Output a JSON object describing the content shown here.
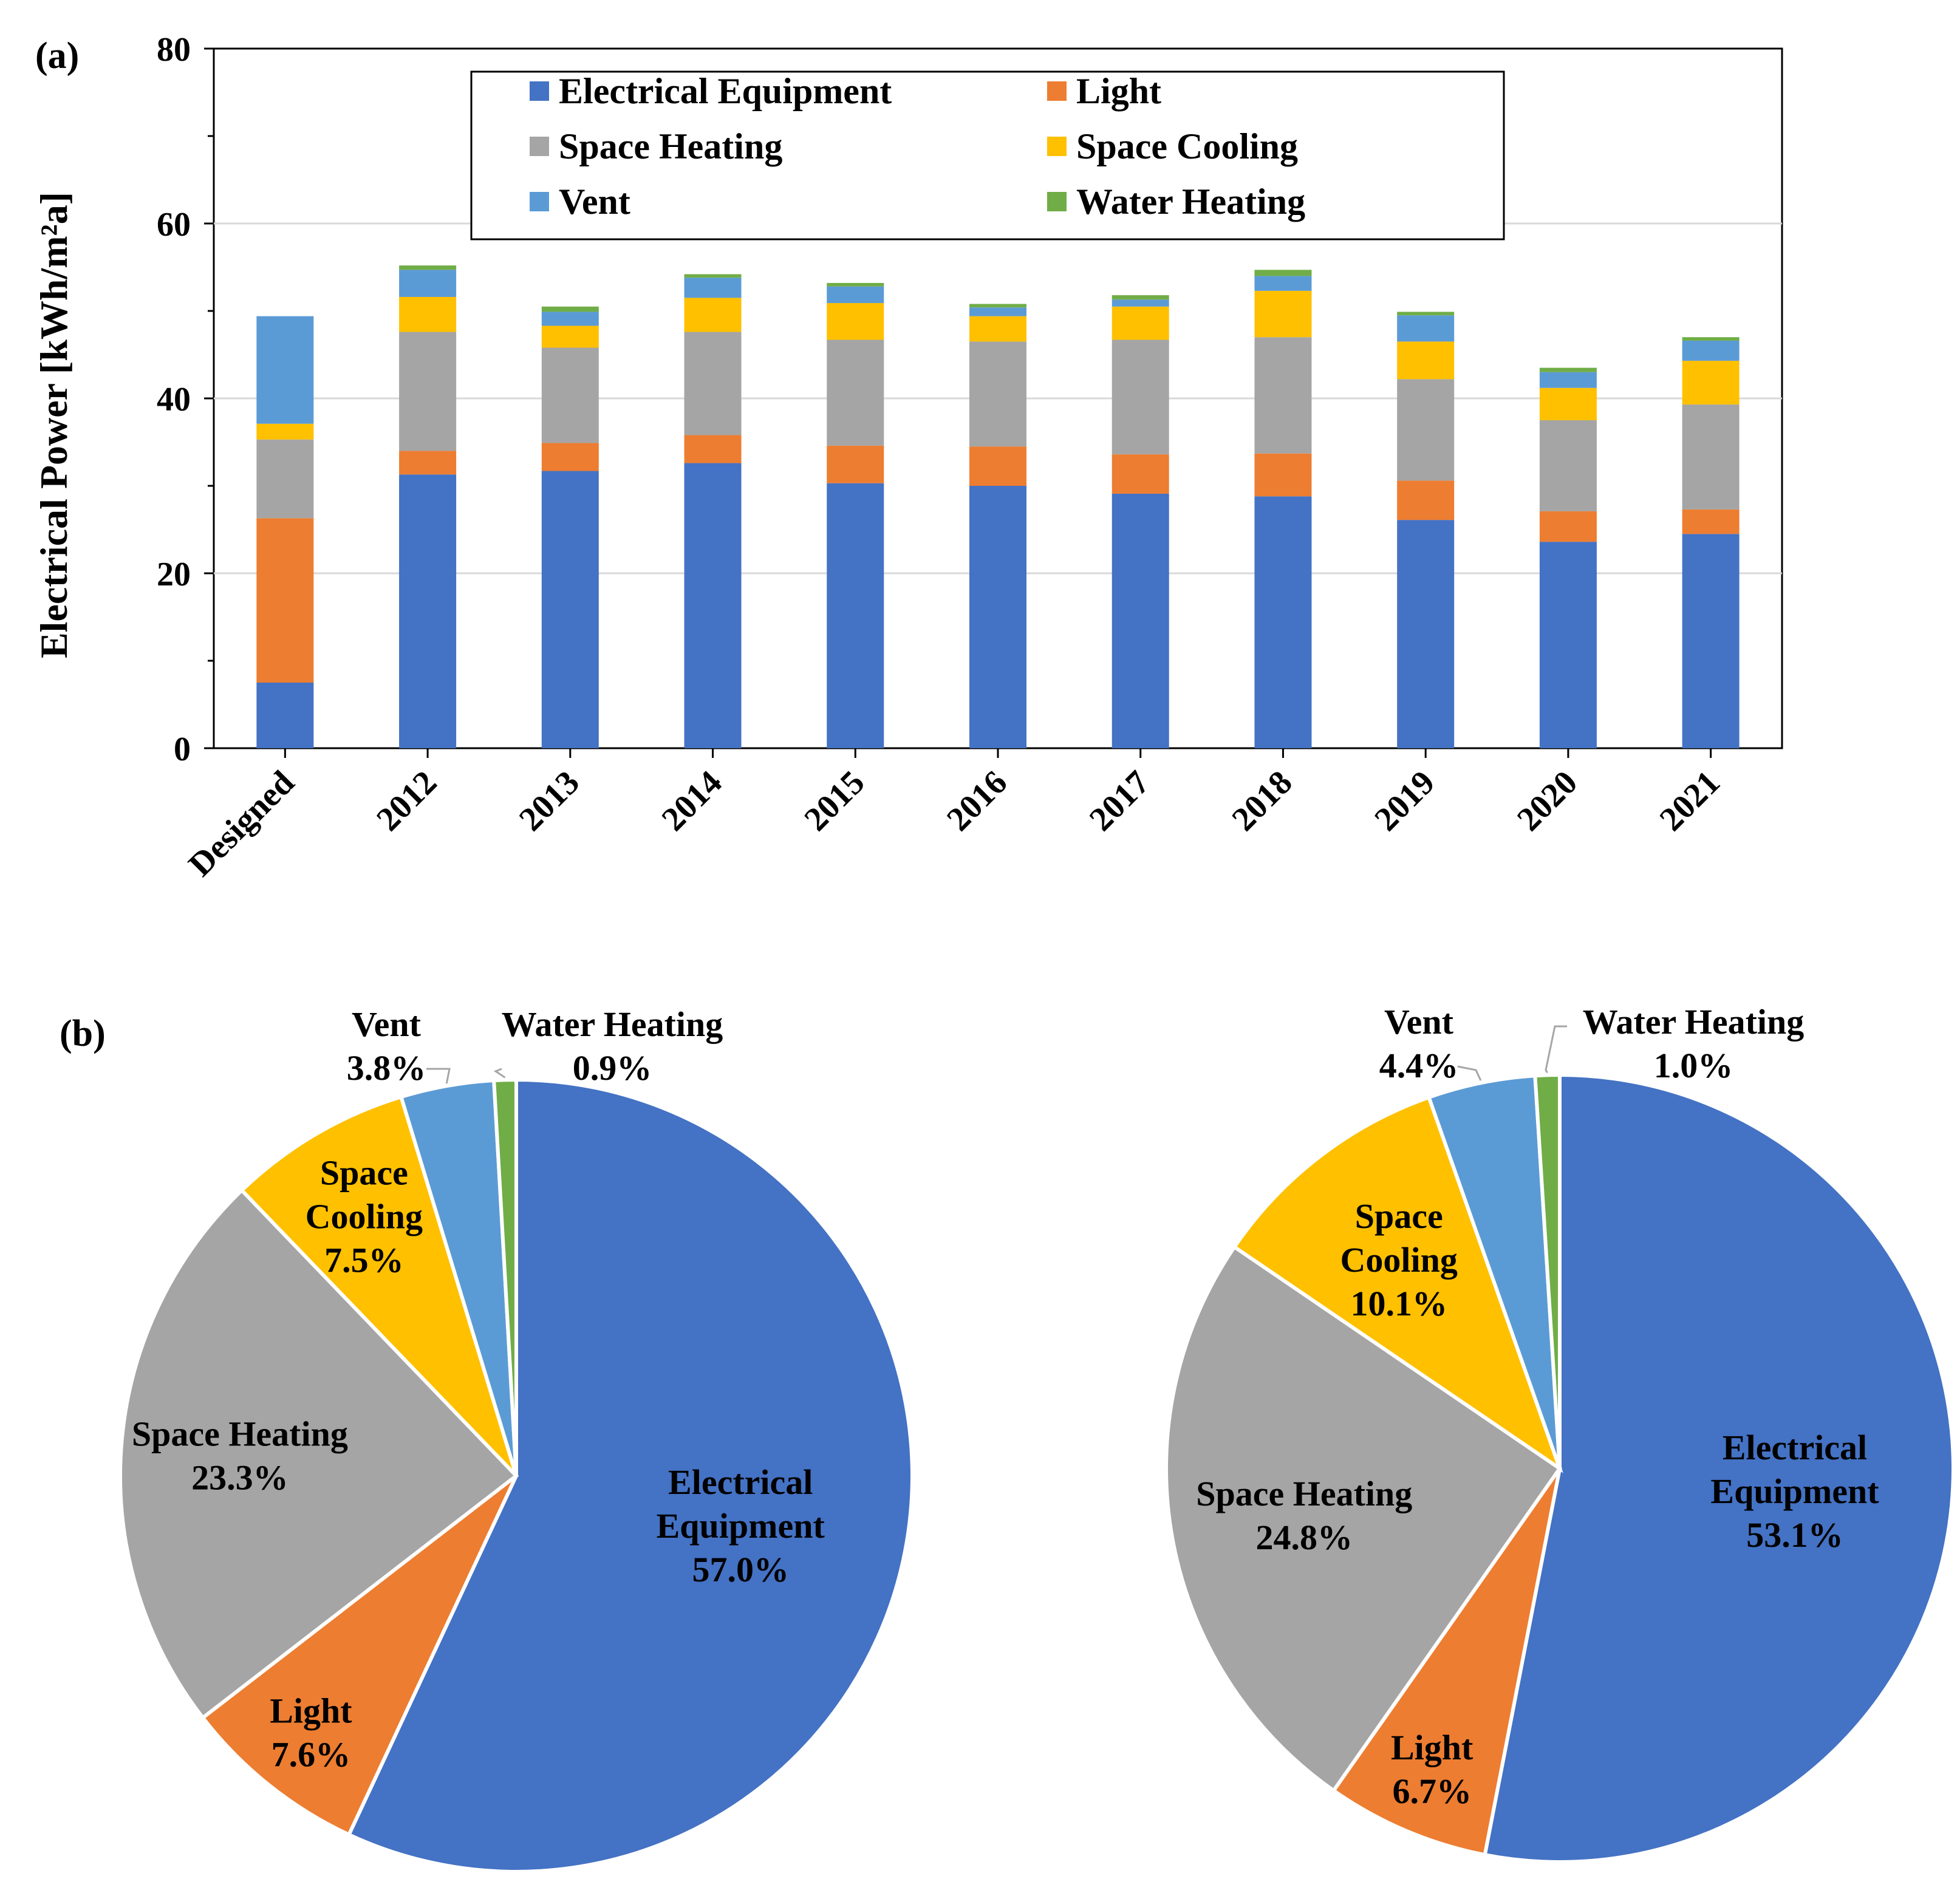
{
  "chart_data": [
    {
      "type": "bar",
      "stacked": true,
      "panel_label": "(a)",
      "ylabel": "Electrical Power [kWh/m²a]",
      "xlabel": "",
      "ylim": [
        0,
        80
      ],
      "yticks": [
        "0",
        "20",
        "40",
        "60",
        "80"
      ],
      "grid": true,
      "legend_position": "top-center",
      "categories": [
        "Designed",
        "2012",
        "2013",
        "2014",
        "2015",
        "2016",
        "2017",
        "2018",
        "2019",
        "2020",
        "2021"
      ],
      "series": [
        {
          "name": "Electrical Equipment",
          "color": "#4472C4",
          "values": [
            7.5,
            31.3,
            31.7,
            32.6,
            30.3,
            30.0,
            29.1,
            28.8,
            26.1,
            23.6,
            24.5
          ]
        },
        {
          "name": "Light",
          "color": "#ED7D31",
          "values": [
            18.8,
            2.7,
            3.2,
            3.2,
            4.3,
            4.5,
            4.5,
            4.9,
            4.5,
            3.5,
            2.8
          ]
        },
        {
          "name": "Space Heating",
          "color": "#A5A5A5",
          "values": [
            9.0,
            13.6,
            10.9,
            11.8,
            12.1,
            12.0,
            13.1,
            13.3,
            11.6,
            10.4,
            12.0
          ]
        },
        {
          "name": "Space Cooling",
          "color": "#FFC000",
          "values": [
            1.8,
            4.0,
            2.5,
            3.9,
            4.2,
            2.9,
            3.8,
            5.3,
            4.3,
            3.7,
            5.0
          ]
        },
        {
          "name": "Vent",
          "color": "#5B9BD5",
          "values": [
            12.3,
            3.1,
            1.6,
            2.3,
            1.9,
            1.0,
            0.8,
            1.7,
            3.0,
            1.8,
            2.3
          ]
        },
        {
          "name": "Water Heating",
          "color": "#70AD47",
          "values": [
            0.0,
            0.5,
            0.6,
            0.4,
            0.4,
            0.4,
            0.5,
            0.7,
            0.4,
            0.5,
            0.4
          ]
        }
      ]
    },
    {
      "type": "pie",
      "panel_label": "(b)",
      "slices": [
        {
          "name": "Electrical Equipment",
          "label": [
            "Electrical",
            "Equipment"
          ],
          "value": 57.0,
          "pct": "57.0%",
          "color": "#4472C4"
        },
        {
          "name": "Light",
          "label": [
            "Light"
          ],
          "value": 7.6,
          "pct": "7.6%",
          "color": "#ED7D31"
        },
        {
          "name": "Space Heating",
          "label": [
            "Space Heating"
          ],
          "value": 23.3,
          "pct": "23.3%",
          "color": "#A5A5A5"
        },
        {
          "name": "Space Cooling",
          "label": [
            "Space",
            "Cooling"
          ],
          "value": 7.5,
          "pct": "7.5%",
          "color": "#FFC000"
        },
        {
          "name": "Vent",
          "label": [
            "Vent"
          ],
          "value": 3.8,
          "pct": "3.8%",
          "color": "#5B9BD5"
        },
        {
          "name": "Water Heating",
          "label": [
            "Water Heating"
          ],
          "value": 0.9,
          "pct": "0.9%",
          "color": "#70AD47"
        }
      ]
    },
    {
      "type": "pie",
      "slices": [
        {
          "name": "Electrical Equipment",
          "label": [
            "Electrical",
            "Equipment"
          ],
          "value": 53.1,
          "pct": "53.1%",
          "color": "#4472C4"
        },
        {
          "name": "Light",
          "label": [
            "Light"
          ],
          "value": 6.7,
          "pct": "6.7%",
          "color": "#ED7D31"
        },
        {
          "name": "Space Heating",
          "label": [
            "Space Heating"
          ],
          "value": 24.8,
          "pct": "24.8%",
          "color": "#A5A5A5"
        },
        {
          "name": "Space Cooling",
          "label": [
            "Space",
            "Cooling"
          ],
          "value": 10.1,
          "pct": "10.1%",
          "color": "#FFC000"
        },
        {
          "name": "Vent",
          "label": [
            "Vent"
          ],
          "value": 4.4,
          "pct": "4.4%",
          "color": "#5B9BD5"
        },
        {
          "name": "Water Heating",
          "label": [
            "Water Heating"
          ],
          "value": 1.0,
          "pct": "1.0%",
          "color": "#70AD47"
        }
      ]
    }
  ]
}
